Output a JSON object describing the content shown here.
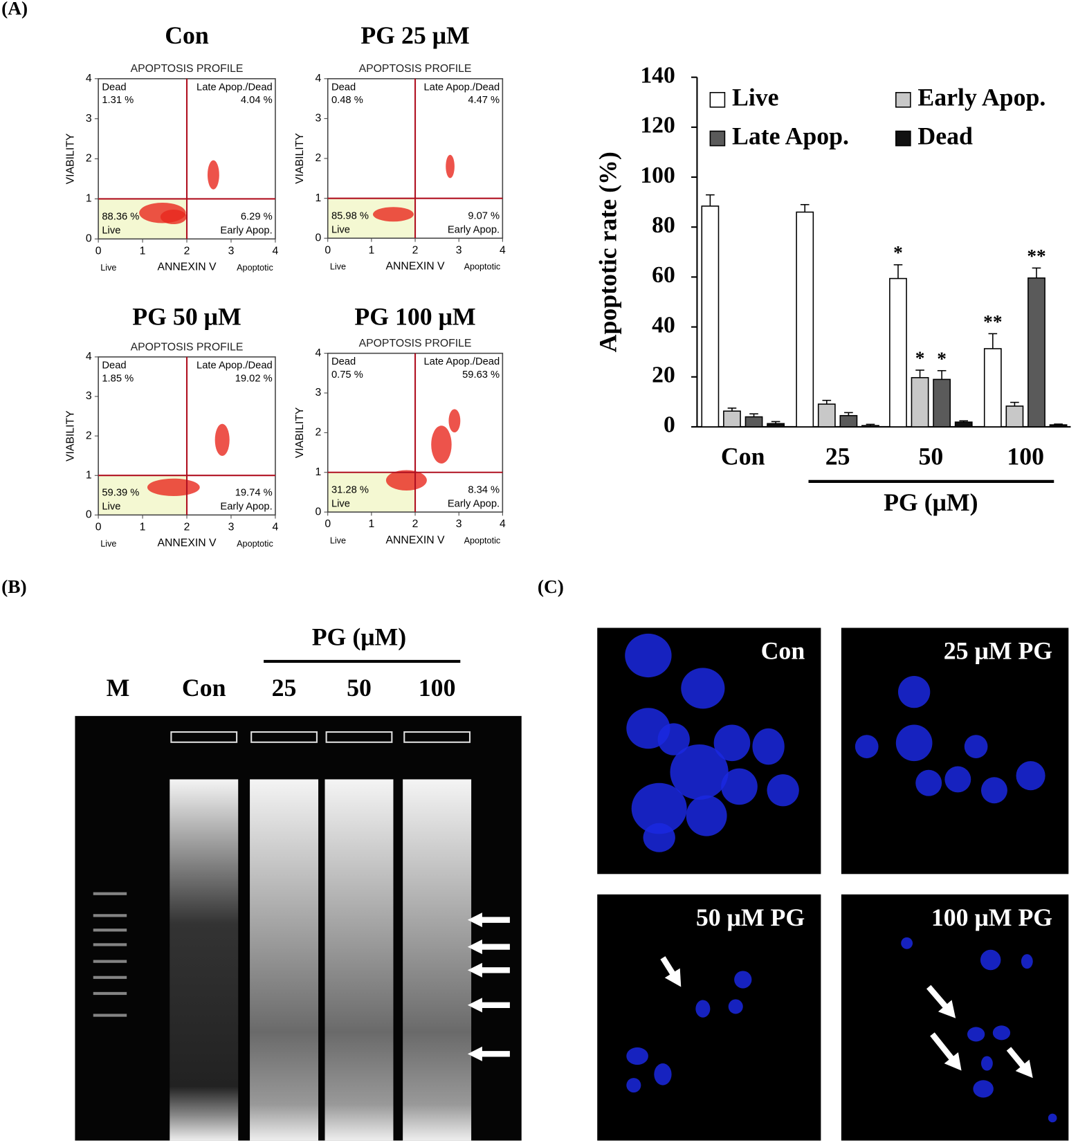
{
  "panel_labels": [
    "(A)",
    "(B)",
    "(C)"
  ],
  "flow_plots": [
    {
      "title": "Con",
      "profile": "APOPTOSIS PROFILE",
      "x_label": "ANNEXIN V",
      "y_label": "VIABILITY",
      "x_left": "Live",
      "x_right": "Apoptotic",
      "xlim": [
        0,
        4
      ],
      "ylim": [
        0,
        4
      ],
      "xticks": [
        0,
        1,
        2,
        3,
        4
      ],
      "yticks": [
        0,
        1,
        2,
        3,
        4
      ],
      "gates": [
        2,
        1
      ],
      "quadrants": {
        "dead": [
          "Dead",
          "1.31 %"
        ],
        "late": [
          "Late Apop./Dead",
          "4.04 %"
        ],
        "live": [
          "88.36 %",
          "Live"
        ],
        "early": [
          "6.29 %",
          "Early Apop."
        ]
      }
    },
    {
      "title": "PG 25 μM",
      "profile": "APOPTOSIS PROFILE",
      "x_label": "ANNEXIN V",
      "y_label": "VIABILITY",
      "x_left": "Live",
      "x_right": "Apoptotic",
      "xlim": [
        0,
        4
      ],
      "ylim": [
        0,
        4
      ],
      "xticks": [
        0,
        1,
        2,
        3,
        4
      ],
      "yticks": [
        0,
        1,
        2,
        3,
        4
      ],
      "gates": [
        2,
        1
      ],
      "quadrants": {
        "dead": [
          "Dead",
          "0.48 %"
        ],
        "late": [
          "Late Apop./Dead",
          "4.47 %"
        ],
        "live": [
          "85.98 %",
          "Live"
        ],
        "early": [
          "9.07 %",
          "Early Apop."
        ]
      }
    },
    {
      "title": "PG 50 μM",
      "profile": "APOPTOSIS PROFILE",
      "x_label": "ANNEXIN V",
      "y_label": "VIABILITY",
      "x_left": "Live",
      "x_right": "Apoptotic",
      "xlim": [
        0,
        4
      ],
      "ylim": [
        0,
        4
      ],
      "xticks": [
        0,
        1,
        2,
        3,
        4
      ],
      "yticks": [
        0,
        1,
        2,
        3,
        4
      ],
      "gates": [
        2,
        1
      ],
      "quadrants": {
        "dead": [
          "Dead",
          "1.85 %"
        ],
        "late": [
          "Late Apop./Dead",
          "19.02 %"
        ],
        "live": [
          "59.39 %",
          "Live"
        ],
        "early": [
          "19.74 %",
          "Early Apop."
        ]
      }
    },
    {
      "title": "PG 100 μM",
      "profile": "APOPTOSIS PROFILE",
      "x_label": "ANNEXIN V",
      "y_label": "VIABILITY",
      "x_left": "Live",
      "x_right": "Apoptotic",
      "xlim": [
        0,
        4
      ],
      "ylim": [
        0,
        4
      ],
      "xticks": [
        0,
        1,
        2,
        3,
        4
      ],
      "yticks": [
        0,
        1,
        2,
        3,
        4
      ],
      "gates": [
        2,
        1
      ],
      "quadrants": {
        "dead": [
          "Dead",
          "0.75 %"
        ],
        "late": [
          "Late Apop./Dead",
          "59.63 %"
        ],
        "live": [
          "31.28 %",
          "Live"
        ],
        "early": [
          "8.34 %",
          "Early Apop."
        ]
      }
    }
  ],
  "chart_data": {
    "type": "bar",
    "y_label": "Apoptotic rate (%)",
    "x_group_label": "PG (μM)",
    "categories": [
      "Con",
      "25",
      "50",
      "100"
    ],
    "series": [
      {
        "name": "Live",
        "color": "#ffffff",
        "values": [
          88.4,
          86,
          59.4,
          31.3
        ],
        "errors": [
          4.5,
          3,
          5.5,
          6
        ],
        "significance": [
          null,
          null,
          "*",
          "**"
        ]
      },
      {
        "name": "Early Apop.",
        "color": "#c8c8c8",
        "values": [
          6.3,
          9.1,
          19.7,
          8.3
        ],
        "errors": [
          1.2,
          1.5,
          3,
          1.5
        ],
        "significance": [
          null,
          null,
          "*",
          null
        ]
      },
      {
        "name": "Late Apop.",
        "color": "#5a5a5a",
        "values": [
          4.0,
          4.5,
          19.0,
          59.6
        ],
        "errors": [
          1.2,
          1.2,
          3.5,
          4
        ],
        "significance": [
          null,
          null,
          "*",
          "**"
        ]
      },
      {
        "name": "Dead",
        "color": "#111111",
        "values": [
          1.3,
          0.5,
          1.9,
          0.8
        ],
        "errors": [
          0.8,
          0.5,
          0.5,
          0.3
        ],
        "significance": [
          null,
          null,
          null,
          null
        ]
      }
    ],
    "ylim": [
      0,
      140
    ],
    "yticks": [
      0,
      20,
      40,
      60,
      80,
      100,
      120,
      140
    ]
  },
  "gel": {
    "group_label": "PG (μM)",
    "lanes": [
      "M",
      "Con",
      "25",
      "50",
      "100"
    ]
  },
  "microscopy": {
    "panels": [
      "Con",
      "25 μM PG",
      "50 μM PG",
      "100 μM PG"
    ]
  }
}
